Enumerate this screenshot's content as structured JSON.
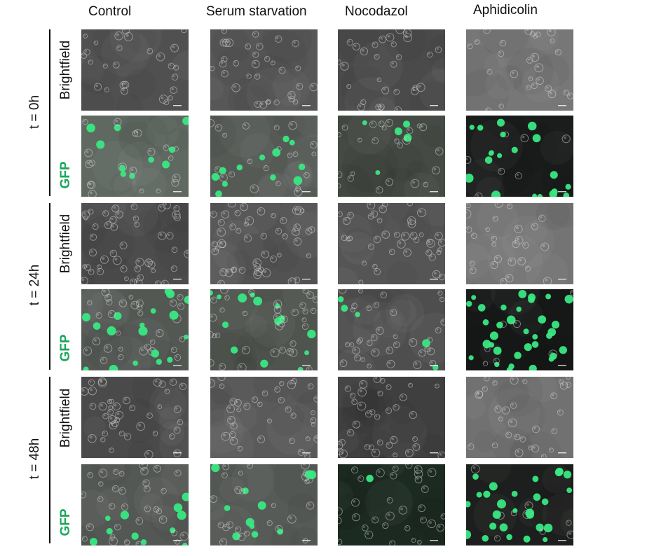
{
  "columns": [
    "Control",
    "Serum starvation",
    "Nocodazol",
    "Aphidicolin"
  ],
  "timepoints": [
    "t = 0h",
    "t = 24h",
    "t = 48h"
  ],
  "channels": {
    "brightfield": "Brightfield",
    "gfp": "GFP"
  },
  "colors": {
    "gfp_label": "#1aa85a",
    "gfp_cell": "#39e882",
    "bracket": "#000000"
  },
  "images": [
    {
      "time": 0,
      "channel": "brightfield",
      "condition": 0,
      "tone": "#505050",
      "density": 0.35,
      "gfp": 0
    },
    {
      "time": 0,
      "channel": "brightfield",
      "condition": 1,
      "tone": "#575757",
      "density": 0.45,
      "gfp": 0
    },
    {
      "time": 0,
      "channel": "brightfield",
      "condition": 2,
      "tone": "#4a4a4a",
      "density": 0.4,
      "gfp": 0
    },
    {
      "time": 0,
      "channel": "brightfield",
      "condition": 3,
      "tone": "#777777",
      "density": 0.35,
      "gfp": 0
    },
    {
      "time": 0,
      "channel": "gfp",
      "condition": 0,
      "tone": "#606862",
      "density": 0.4,
      "gfp": 0.35
    },
    {
      "time": 0,
      "channel": "gfp",
      "condition": 1,
      "tone": "#555a55",
      "density": 0.45,
      "gfp": 0.25
    },
    {
      "time": 0,
      "channel": "gfp",
      "condition": 2,
      "tone": "#454a45",
      "density": 0.4,
      "gfp": 0.3
    },
    {
      "time": 0,
      "channel": "gfp",
      "condition": 3,
      "tone": "#1a1d1b",
      "density": 0.35,
      "gfp": 0.6
    },
    {
      "time": 1,
      "channel": "brightfield",
      "condition": 0,
      "tone": "#4c4c4c",
      "density": 0.7,
      "gfp": 0
    },
    {
      "time": 1,
      "channel": "brightfield",
      "condition": 1,
      "tone": "#525252",
      "density": 0.75,
      "gfp": 0
    },
    {
      "time": 1,
      "channel": "brightfield",
      "condition": 2,
      "tone": "#555555",
      "density": 0.6,
      "gfp": 0
    },
    {
      "time": 1,
      "channel": "brightfield",
      "condition": 3,
      "tone": "#747474",
      "density": 0.35,
      "gfp": 0
    },
    {
      "time": 1,
      "channel": "gfp",
      "condition": 0,
      "tone": "#535853",
      "density": 0.75,
      "gfp": 0.3
    },
    {
      "time": 1,
      "channel": "gfp",
      "condition": 1,
      "tone": "#4f544f",
      "density": 0.75,
      "gfp": 0.35
    },
    {
      "time": 1,
      "channel": "gfp",
      "condition": 2,
      "tone": "#4e4e4e",
      "density": 0.6,
      "gfp": 0.15
    },
    {
      "time": 1,
      "channel": "gfp",
      "condition": 3,
      "tone": "#151816",
      "density": 0.6,
      "gfp": 0.85
    },
    {
      "time": 2,
      "channel": "brightfield",
      "condition": 0,
      "tone": "#4a4a4a",
      "density": 0.6,
      "gfp": 0
    },
    {
      "time": 2,
      "channel": "brightfield",
      "condition": 1,
      "tone": "#5a5a5a",
      "density": 0.5,
      "gfp": 0
    },
    {
      "time": 2,
      "channel": "brightfield",
      "condition": 2,
      "tone": "#3f3f3f",
      "density": 0.5,
      "gfp": 0
    },
    {
      "time": 2,
      "channel": "brightfield",
      "condition": 3,
      "tone": "#717171",
      "density": 0.4,
      "gfp": 0
    },
    {
      "time": 2,
      "channel": "gfp",
      "condition": 0,
      "tone": "#545854",
      "density": 0.65,
      "gfp": 0.3
    },
    {
      "time": 2,
      "channel": "gfp",
      "condition": 1,
      "tone": "#575b57",
      "density": 0.5,
      "gfp": 0.2
    },
    {
      "time": 2,
      "channel": "gfp",
      "condition": 2,
      "tone": "#1c2b22",
      "density": 0.45,
      "gfp": 0.05
    },
    {
      "time": 2,
      "channel": "gfp",
      "condition": 3,
      "tone": "#1c1f1d",
      "density": 0.5,
      "gfp": 0.75
    }
  ]
}
